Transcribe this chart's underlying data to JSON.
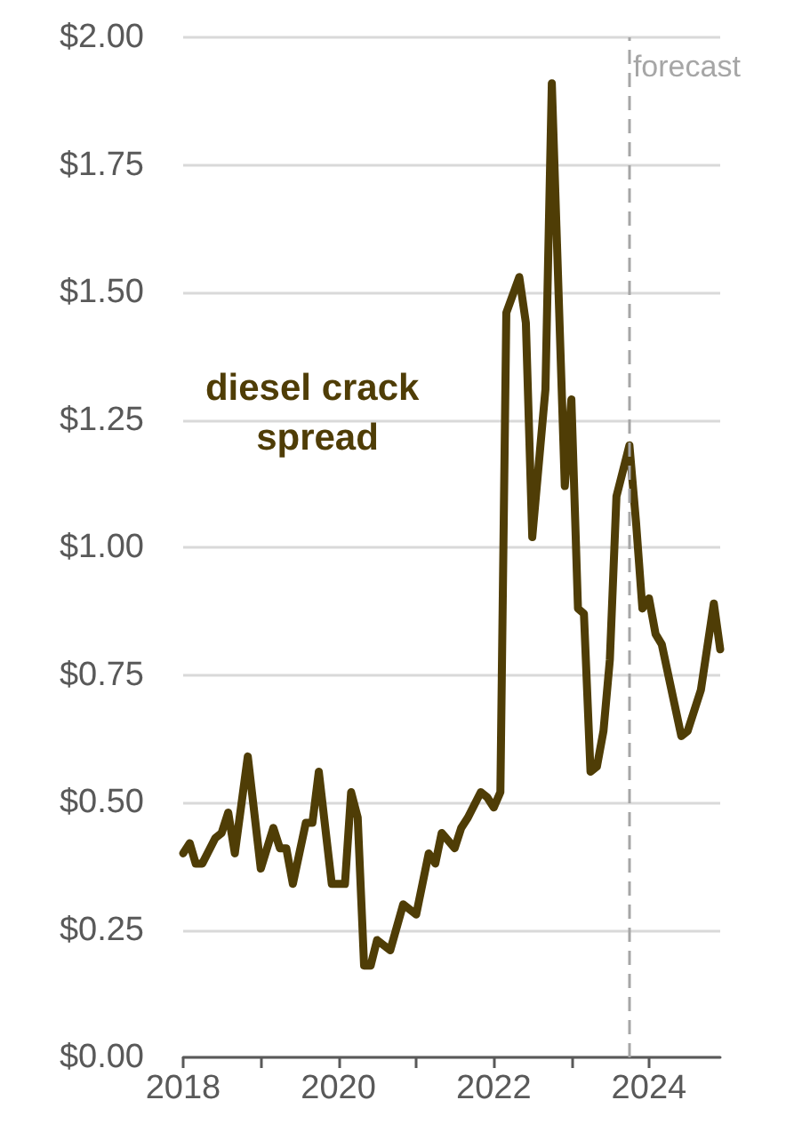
{
  "chart_data": {
    "type": "line",
    "x": [
      "2018-01",
      "2018-02",
      "2018-03",
      "2018-04",
      "2018-06",
      "2018-07",
      "2018-08",
      "2018-09",
      "2018-11",
      "2019-01",
      "2019-03",
      "2019-04",
      "2019-05",
      "2019-06",
      "2019-08",
      "2019-09",
      "2019-10",
      "2019-12",
      "2020-02",
      "2020-03",
      "2020-04",
      "2020-05",
      "2020-06",
      "2020-07",
      "2020-09",
      "2020-11",
      "2021-01",
      "2021-03",
      "2021-04",
      "2021-05",
      "2021-07",
      "2021-08",
      "2021-09",
      "2021-11",
      "2021-12",
      "2022-01",
      "2022-02",
      "2022-03",
      "2022-05",
      "2022-06",
      "2022-07",
      "2022-09",
      "2022-10",
      "2022-12",
      "2023-01",
      "2023-02",
      "2023-03",
      "2023-04",
      "2023-05",
      "2023-06",
      "2023-07",
      "2023-08",
      "2023-10",
      "2023-11",
      "2023-12",
      "2024-01",
      "2024-02",
      "2024-03",
      "2024-06",
      "2024-07",
      "2024-09",
      "2024-11",
      "2024-12"
    ],
    "series": [
      {
        "name": "diesel crack spread",
        "color": "#4f3d06",
        "values": [
          0.4,
          0.42,
          0.38,
          0.38,
          0.43,
          0.44,
          0.48,
          0.4,
          0.59,
          0.37,
          0.45,
          0.41,
          0.41,
          0.34,
          0.46,
          0.46,
          0.56,
          0.34,
          0.34,
          0.52,
          0.47,
          0.18,
          0.18,
          0.23,
          0.21,
          0.3,
          0.28,
          0.4,
          0.38,
          0.44,
          0.41,
          0.45,
          0.47,
          0.52,
          0.51,
          0.49,
          0.52,
          1.46,
          1.53,
          1.44,
          1.02,
          1.31,
          1.91,
          1.12,
          1.29,
          0.88,
          0.87,
          0.56,
          0.57,
          0.64,
          0.78,
          1.1,
          1.2,
          1.05,
          0.88,
          0.9,
          0.83,
          0.81,
          0.63,
          0.64,
          0.72,
          0.89,
          0.8
        ]
      }
    ],
    "xlim": [
      "2018-01",
      "2024-12"
    ],
    "xticks": [
      {
        "value": "2018",
        "label": "2018"
      },
      {
        "value": "2019",
        "label": null
      },
      {
        "value": "2020",
        "label": "2020"
      },
      {
        "value": "2021",
        "label": null
      },
      {
        "value": "2022",
        "label": "2022"
      },
      {
        "value": "2023",
        "label": null
      },
      {
        "value": "2024",
        "label": "2024"
      }
    ],
    "ylim": [
      0,
      2
    ],
    "yticks": [
      {
        "value": 0,
        "label": "$0.00"
      },
      {
        "value": 0.25,
        "label": "$0.25"
      },
      {
        "value": 0.5,
        "label": "$0.50"
      },
      {
        "value": 0.75,
        "label": "$0.75"
      },
      {
        "value": 1,
        "label": "$1.00"
      },
      {
        "value": 1.25,
        "label": "$1.25"
      },
      {
        "value": 1.5,
        "label": "$1.50"
      },
      {
        "value": 1.75,
        "label": "$1.75"
      },
      {
        "value": 2,
        "label": "$2.00"
      }
    ],
    "grid": "y",
    "legend": false,
    "marker": "none",
    "line_style": "solid",
    "ref_lines": [
      {
        "axis": "x",
        "value": "2023-10",
        "label": "forecast",
        "color": "#a6a6a6",
        "line_style": "dashed"
      }
    ]
  }
}
